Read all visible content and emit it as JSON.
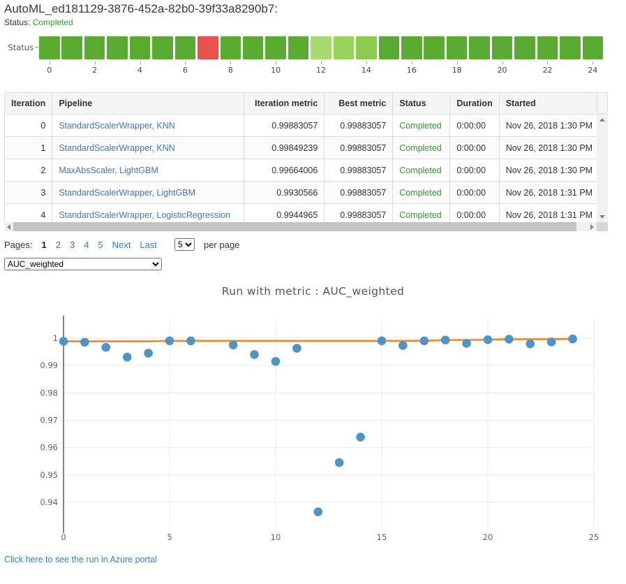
{
  "header": {
    "title": "AutoML_ed181129-3876-452a-82b0-39f33a8290b7:",
    "status_label": "Status:",
    "status_value": "Completed"
  },
  "status_bar": {
    "label": "Status",
    "squares": [
      "c",
      "c",
      "c",
      "c",
      "c",
      "c",
      "c",
      "f",
      "c",
      "c",
      "c",
      "c",
      "l1",
      "l2",
      "l3",
      "c",
      "c",
      "c",
      "c",
      "c",
      "c",
      "c",
      "c",
      "c",
      "c"
    ],
    "state_colors": {
      "c": "#5aab32",
      "f": "#e8534f",
      "l1": "#a5da6e",
      "l2": "#98d35c",
      "l3": "#8bcb50"
    },
    "tick_labels": [
      "0",
      "2",
      "4",
      "6",
      "8",
      "10",
      "12",
      "14",
      "16",
      "18",
      "20",
      "22",
      "24"
    ]
  },
  "table": {
    "columns": [
      "Iteration",
      "Pipeline",
      "Iteration metric",
      "Best metric",
      "Status",
      "Duration",
      "Started"
    ],
    "rows": [
      [
        "0",
        "StandardScalerWrapper, KNN",
        "0.99883057",
        "0.99883057",
        "Completed",
        "0:00:00",
        "Nov 26, 2018 1:30 PM"
      ],
      [
        "1",
        "StandardScalerWrapper, KNN",
        "0.99849239",
        "0.99883057",
        "Completed",
        "0:00:00",
        "Nov 26, 2018 1:30 PM"
      ],
      [
        "2",
        "MaxAbsScaler, LightGBM",
        "0.99664006",
        "0.99883057",
        "Completed",
        "0:00:00",
        "Nov 26, 2018 1:30 PM"
      ],
      [
        "3",
        "StandardScalerWrapper, LightGBM",
        "0.9930566",
        "0.99883057",
        "Completed",
        "0:00:00",
        "Nov 26, 2018 1:31 PM"
      ],
      [
        "4",
        "StandardScalerWrapper, LogisticRegression",
        "0.9944965",
        "0.99883057",
        "Completed",
        "0:00:00",
        "Nov 26, 2018 1:31 PM"
      ]
    ]
  },
  "pagination": {
    "label": "Pages:",
    "current": "1",
    "page_links": [
      "2",
      "3",
      "4",
      "5"
    ],
    "next_label": "Next",
    "last_label": "Last",
    "page_size": "5",
    "per_page_label": "per page"
  },
  "metric_select": {
    "value": "AUC_weighted"
  },
  "chart_data": {
    "type": "scatter",
    "title": "Run with metric : AUC_weighted",
    "xlim": [
      0,
      25
    ],
    "ylim": [
      0.94,
      1.0
    ],
    "xticks": [
      {
        "v": 0,
        "label": "0"
      },
      {
        "v": 5,
        "label": "5"
      },
      {
        "v": 10,
        "label": "10"
      },
      {
        "v": 15,
        "label": "15"
      },
      {
        "v": 20,
        "label": "20"
      },
      {
        "v": 25,
        "label": "25"
      }
    ],
    "yticks": [
      {
        "v": 1,
        "label": "1"
      },
      {
        "v": 0.99,
        "label": "0.99"
      },
      {
        "v": 0.98,
        "label": "0.98"
      },
      {
        "v": 0.97,
        "label": "0.97"
      },
      {
        "v": 0.96,
        "label": "0.96"
      },
      {
        "v": 0.95,
        "label": "0.95"
      },
      {
        "v": 0.94,
        "label": "0.94"
      }
    ],
    "series_note": "blue dots = iteration metric per iteration (iteration 7 failed, no point); orange line = running best metric",
    "points": [
      [
        0,
        0.99883
      ],
      [
        1,
        0.99849
      ],
      [
        2,
        0.99664
      ],
      [
        3,
        0.99306
      ],
      [
        4,
        0.9945
      ],
      [
        5,
        0.999
      ],
      [
        6,
        0.999
      ],
      [
        8,
        0.9975
      ],
      [
        9,
        0.994
      ],
      [
        10,
        0.9915
      ],
      [
        11,
        0.9963
      ],
      [
        12,
        0.9365
      ],
      [
        13,
        0.9545
      ],
      [
        14,
        0.9638
      ],
      [
        15,
        0.999
      ],
      [
        16,
        0.9973
      ],
      [
        17,
        0.999
      ],
      [
        18,
        0.9993
      ],
      [
        19,
        0.9981
      ],
      [
        20,
        0.9994
      ],
      [
        21,
        0.9996
      ],
      [
        22,
        0.9979
      ],
      [
        23,
        0.9986
      ],
      [
        24,
        0.9997
      ]
    ]
  },
  "footer": {
    "portal_link": "Click here to see the run in Azure portal"
  },
  "colors": {
    "accent_green": "#2ca02c",
    "link_blue": "#3b7bbf",
    "point_blue": "#4d94c7",
    "line_orange": "#fa8423",
    "grid": "#e9e9e9",
    "axis_text": "#5a6470",
    "zeroline": "#444444"
  }
}
